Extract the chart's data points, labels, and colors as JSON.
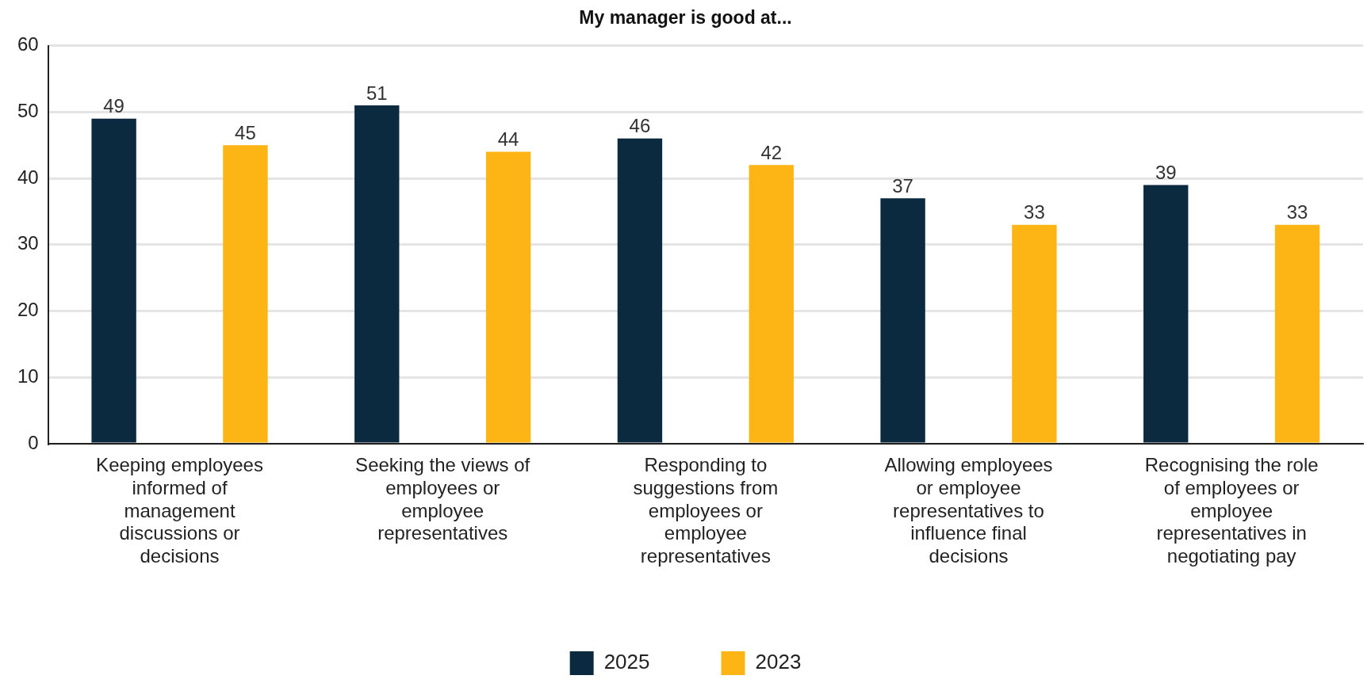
{
  "chart_data": {
    "type": "bar",
    "title": "My manager is good at...",
    "categories": [
      "Keeping employees informed of management discussions or decisions",
      "Seeking the views of employees or employee representatives",
      "Responding to suggestions from employees or employee representatives",
      "Allowing employees or employee representatives to influence final decisions",
      "Recognising the role of employees or employee representatives in negotiating pay"
    ],
    "series": [
      {
        "name": "2025",
        "color": "#0b2a3f",
        "values": [
          49,
          51,
          46,
          37,
          39
        ]
      },
      {
        "name": "2023",
        "color": "#fdb515",
        "values": [
          45,
          44,
          42,
          33,
          33
        ]
      }
    ],
    "ylim": [
      0,
      60
    ],
    "yticks": [
      0,
      10,
      20,
      30,
      40,
      50,
      60
    ],
    "grid": "y",
    "legend": "bottom",
    "data_labels": true
  }
}
